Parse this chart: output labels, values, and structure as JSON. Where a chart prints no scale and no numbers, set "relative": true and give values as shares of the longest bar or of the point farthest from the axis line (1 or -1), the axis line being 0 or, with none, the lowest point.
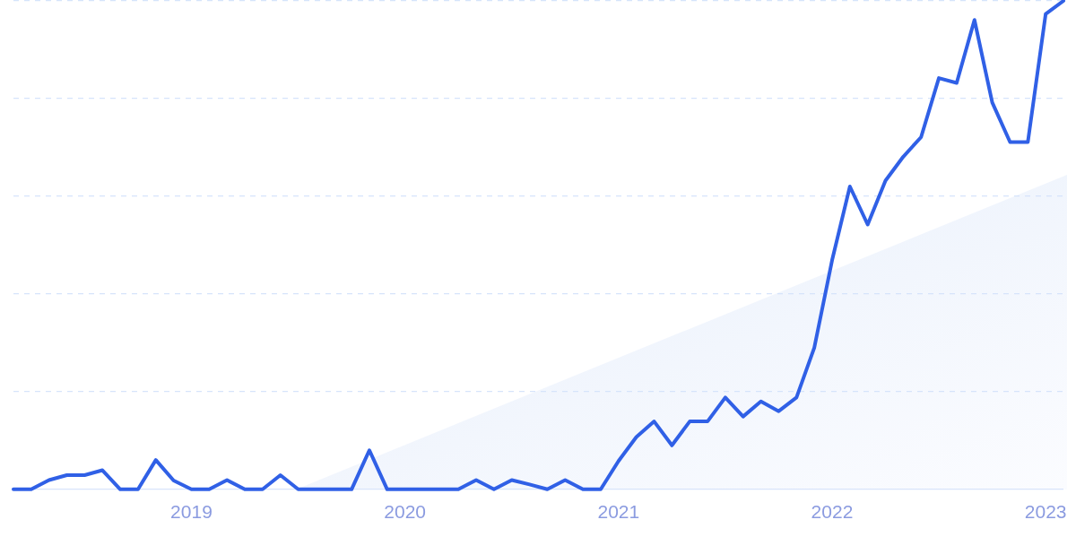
{
  "chart_data": {
    "type": "line",
    "relative": true,
    "grid": "y",
    "legend": false,
    "marker": "none",
    "line_style": "solid",
    "categories": [
      null,
      null,
      null,
      null,
      null,
      null,
      null,
      null,
      null,
      null,
      "2019",
      null,
      null,
      null,
      null,
      null,
      null,
      null,
      null,
      null,
      null,
      null,
      "2020",
      null,
      null,
      null,
      null,
      null,
      null,
      null,
      null,
      null,
      null,
      null,
      "2021",
      null,
      null,
      null,
      null,
      null,
      null,
      null,
      null,
      null,
      null,
      null,
      "2022",
      null,
      null,
      null,
      null,
      null,
      null,
      null,
      null,
      null,
      null,
      null,
      "2023",
      null
    ],
    "series": [
      {
        "color": "#3060e6",
        "values": [
          0,
          0,
          0.019,
          0.029,
          0.029,
          0.039,
          0,
          0,
          0.06,
          0.018,
          0,
          0,
          0.019,
          0,
          0,
          0.029,
          0,
          0,
          0,
          0,
          0.08,
          0,
          0,
          0,
          0,
          0,
          0.019,
          0,
          0.019,
          0.01,
          0,
          0.019,
          0,
          0,
          0.058,
          0.107,
          0.139,
          0.09,
          0.139,
          0.139,
          0.188,
          0.149,
          0.18,
          0.16,
          0.188,
          0.29,
          0.469,
          0.62,
          0.542,
          0.632,
          0.681,
          0.721,
          0.842,
          0.832,
          0.961,
          0.792,
          0.711,
          0.711,
          0.973,
          1
        ]
      }
    ]
  }
}
